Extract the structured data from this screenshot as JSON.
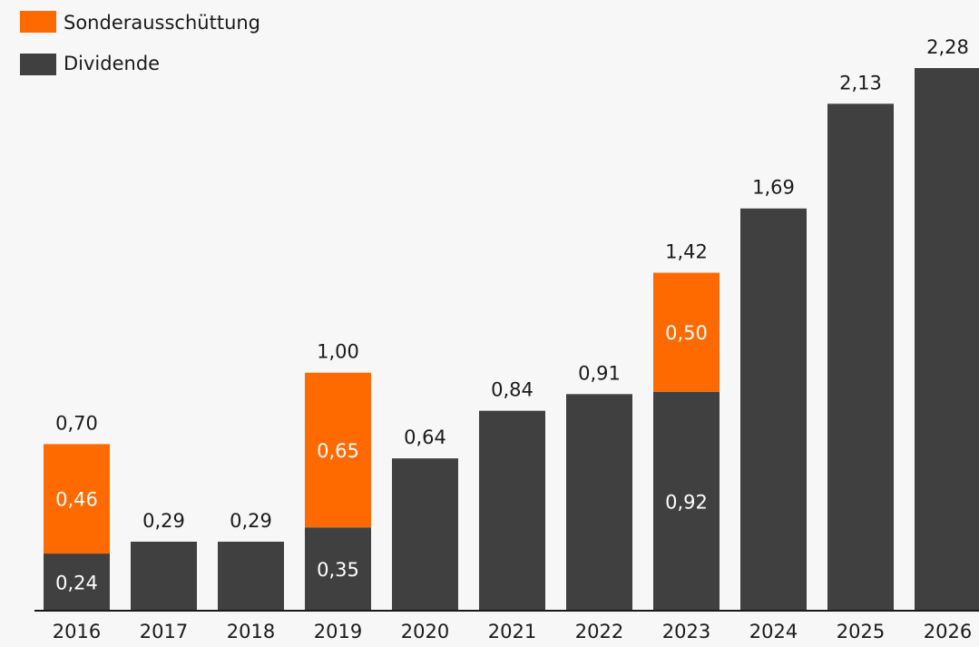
{
  "chart_data": {
    "type": "stacked_bar",
    "categories": [
      "2016",
      "2017",
      "2018",
      "2019",
      "2020",
      "2021",
      "2022",
      "2023",
      "2024",
      "2025",
      "2026"
    ],
    "series": [
      {
        "name": "Dividende",
        "color": "#404040",
        "values": [
          0.24,
          0.29,
          0.29,
          0.35,
          0.64,
          0.84,
          0.91,
          0.92,
          1.69,
          2.13,
          2.28
        ],
        "value_labels": [
          "0,24",
          "0,29",
          "0,29",
          "0,35",
          "0,64",
          "0,84",
          "0,91",
          "0,92",
          "1,69",
          "2,13",
          "2,28"
        ]
      },
      {
        "name": "Sonderausschüttung",
        "color": "#ff6a00",
        "values": [
          0.46,
          null,
          null,
          0.65,
          null,
          null,
          null,
          0.5,
          null,
          null,
          null
        ],
        "value_labels": [
          "0,46",
          null,
          null,
          "0,65",
          null,
          null,
          null,
          "0,50",
          null,
          null,
          null
        ]
      }
    ],
    "total_labels": [
      "0,70",
      null,
      null,
      "1,00",
      null,
      null,
      null,
      "1,42",
      null,
      null,
      null
    ],
    "ylim": [
      0,
      2.28
    ]
  }
}
